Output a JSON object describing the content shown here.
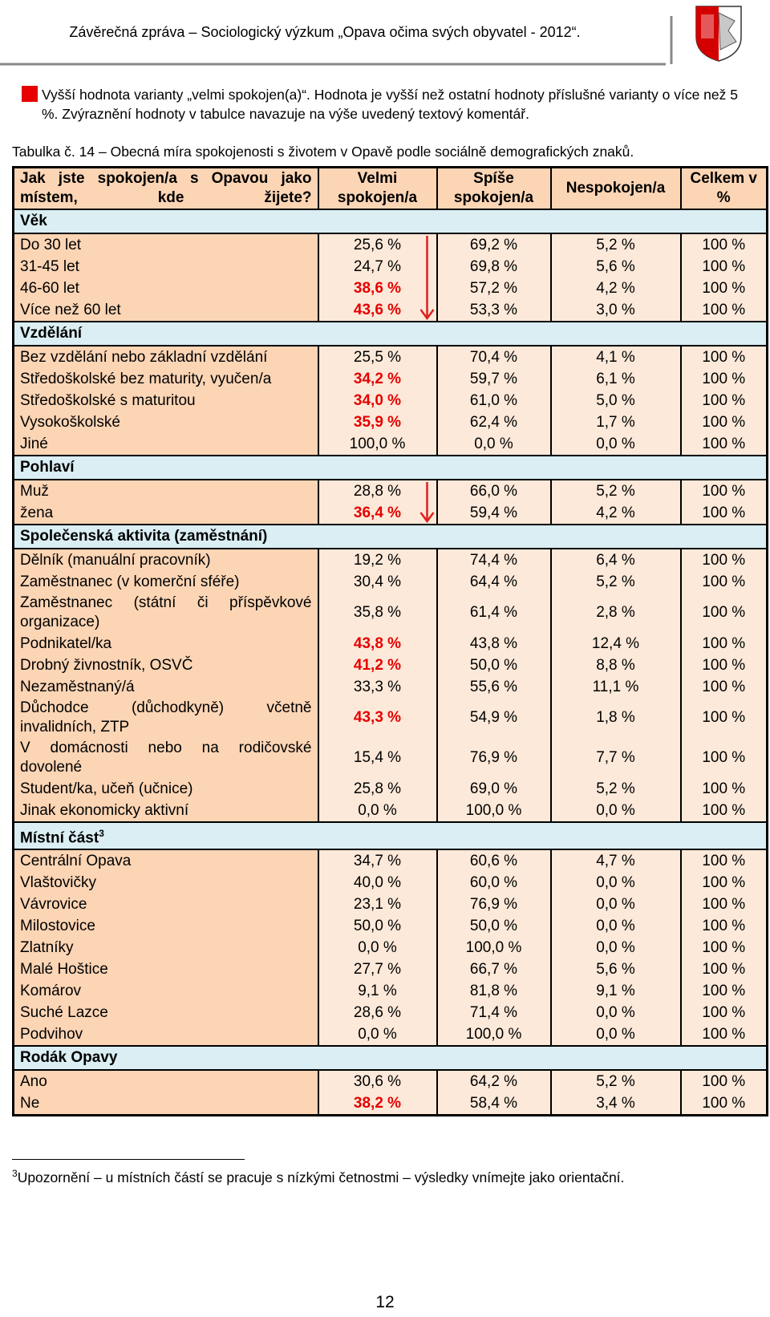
{
  "header": {
    "title": "Závěrečná zpráva – Sociologický výzkum „Opava očima svých obyvatel - 2012“."
  },
  "legend": {
    "text": "Vyšší hodnota varianty „velmi spokojen(a)“. Hodnota je vyšší než ostatní hodnoty příslušné varianty o více než 5 %. Zvýraznění hodnoty v tabulce navazuje na výše uvedený textový komentář."
  },
  "caption": "Tabulka č. 14 – Obecná míra spokojenosti s životem v Opavě podle sociálně demografických znaků.",
  "table": {
    "columns": [
      "Jak jste spokojen/a s Opavou jako místem, kde žijete?",
      "Velmi spokojen/a",
      "Spíše spokojen/a",
      "Nespokojen/a",
      "Celkem v %"
    ],
    "sections": [
      {
        "title": "Věk",
        "trend_arrow": true,
        "rows": [
          {
            "label": "Do 30 let",
            "cells": [
              "25,6 %",
              "69,2 %",
              "5,2 %",
              "100 %"
            ],
            "highlight": false
          },
          {
            "label": "31-45 let",
            "cells": [
              "24,7 %",
              "69,8 %",
              "5,6 %",
              "100 %"
            ],
            "highlight": false
          },
          {
            "label": "46-60 let",
            "cells": [
              "38,6 %",
              "57,2 %",
              "4,2 %",
              "100 %"
            ],
            "highlight": true
          },
          {
            "label": "Více než 60 let",
            "cells": [
              "43,6 %",
              "53,3 %",
              "3,0 %",
              "100 %"
            ],
            "highlight": true
          }
        ]
      },
      {
        "title": "Vzdělání",
        "trend_arrow": false,
        "rows": [
          {
            "label": "Bez vzdělání nebo základní vzdělání",
            "cells": [
              "25,5 %",
              "70,4 %",
              "4,1 %",
              "100 %"
            ],
            "highlight": false
          },
          {
            "label": "Středoškolské bez maturity, vyučen/a",
            "cells": [
              "34,2 %",
              "59,7 %",
              "6,1 %",
              "100 %"
            ],
            "highlight": true
          },
          {
            "label": "Středoškolské s maturitou",
            "cells": [
              "34,0 %",
              "61,0 %",
              "5,0 %",
              "100 %"
            ],
            "highlight": true
          },
          {
            "label": "Vysokoškolské",
            "cells": [
              "35,9 %",
              "62,4 %",
              "1,7 %",
              "100 %"
            ],
            "highlight": true
          },
          {
            "label": "Jiné",
            "cells": [
              "100,0 %",
              "0,0 %",
              "0,0 %",
              "100 %"
            ],
            "highlight": false
          }
        ]
      },
      {
        "title": "Pohlaví",
        "trend_arrow": true,
        "rows": [
          {
            "label": "Muž",
            "cells": [
              "28,8 %",
              "66,0 %",
              "5,2 %",
              "100 %"
            ],
            "highlight": false
          },
          {
            "label": "žena",
            "cells": [
              "36,4 %",
              "59,4 %",
              "4,2 %",
              "100 %"
            ],
            "highlight": true
          }
        ]
      },
      {
        "title": "Společenská aktivita (zaměstnání)",
        "trend_arrow": false,
        "rows": [
          {
            "label": "Dělník (manuální pracovník)",
            "cells": [
              "19,2 %",
              "74,4 %",
              "6,4 %",
              "100 %"
            ],
            "highlight": false
          },
          {
            "label": "Zaměstnanec (v komerční sféře)",
            "cells": [
              "30,4 %",
              "64,4 %",
              "5,2 %",
              "100 %"
            ],
            "highlight": false
          },
          {
            "label": "Zaměstnanec (státní či příspěvkové organizace)",
            "cells": [
              "35,8 %",
              "61,4 %",
              "2,8 %",
              "100 %"
            ],
            "highlight": false
          },
          {
            "label": "Podnikatel/ka",
            "cells": [
              "43,8 %",
              "43,8 %",
              "12,4 %",
              "100 %"
            ],
            "highlight": true
          },
          {
            "label": "Drobný živnostník, OSVČ",
            "cells": [
              "41,2 %",
              "50,0 %",
              "8,8 %",
              "100 %"
            ],
            "highlight": true
          },
          {
            "label": "Nezaměstnaný/á",
            "cells": [
              "33,3 %",
              "55,6 %",
              "11,1 %",
              "100 %"
            ],
            "highlight": false
          },
          {
            "label": "Důchodce (důchodkyně) včetně invalidních, ZTP",
            "cells": [
              "43,3 %",
              "54,9 %",
              "1,8 %",
              "100 %"
            ],
            "highlight": true
          },
          {
            "label": "V domácnosti nebo na rodičovské dovolené",
            "cells": [
              "15,4 %",
              "76,9 %",
              "7,7 %",
              "100 %"
            ],
            "highlight": false
          },
          {
            "label": "Student/ka, učeň (učnice)",
            "cells": [
              "25,8 %",
              "69,0 %",
              "5,2 %",
              "100 %"
            ],
            "highlight": false
          },
          {
            "label": "Jinak ekonomicky aktivní",
            "cells": [
              "0,0 %",
              "100,0 %",
              "0,0 %",
              "100 %"
            ],
            "highlight": false
          }
        ]
      },
      {
        "title": "Místní část",
        "footnote_ref": "3",
        "trend_arrow": false,
        "rows": [
          {
            "label": "Centrální Opava",
            "cells": [
              "34,7 %",
              "60,6 %",
              "4,7 %",
              "100 %"
            ],
            "highlight": false
          },
          {
            "label": "Vlaštovičky",
            "cells": [
              "40,0 %",
              "60,0 %",
              "0,0 %",
              "100 %"
            ],
            "highlight": false
          },
          {
            "label": "Vávrovice",
            "cells": [
              "23,1 %",
              "76,9 %",
              "0,0 %",
              "100 %"
            ],
            "highlight": false
          },
          {
            "label": "Milostovice",
            "cells": [
              "50,0 %",
              "50,0 %",
              "0,0 %",
              "100 %"
            ],
            "highlight": false
          },
          {
            "label": "Zlatníky",
            "cells": [
              "0,0 %",
              "100,0 %",
              "0,0 %",
              "100 %"
            ],
            "highlight": false
          },
          {
            "label": "Malé Hoštice",
            "cells": [
              "27,7 %",
              "66,7 %",
              "5,6 %",
              "100 %"
            ],
            "highlight": false
          },
          {
            "label": "Komárov",
            "cells": [
              "9,1 %",
              "81,8 %",
              "9,1 %",
              "100 %"
            ],
            "highlight": false
          },
          {
            "label": "Suché Lazce",
            "cells": [
              "28,6 %",
              "71,4 %",
              "0,0 %",
              "100 %"
            ],
            "highlight": false
          },
          {
            "label": "Podvihov",
            "cells": [
              "0,0 %",
              "100,0 %",
              "0,0 %",
              "100 %"
            ],
            "highlight": false
          }
        ]
      },
      {
        "title": "Rodák Opavy",
        "trend_arrow": false,
        "rows": [
          {
            "label": "Ano",
            "cells": [
              "30,6 %",
              "64,2 %",
              "5,2 %",
              "100 %"
            ],
            "highlight": false
          },
          {
            "label": "Ne",
            "cells": [
              "38,2 %",
              "58,4 %",
              "3,4 %",
              "100 %"
            ],
            "highlight": true
          }
        ]
      }
    ]
  },
  "footnote": {
    "mark": "3",
    "text": "Upozornění – u místních částí se pracuje s nízkými četnostmi – výsledky vnímejte jako orientační."
  },
  "page_number": "12"
}
